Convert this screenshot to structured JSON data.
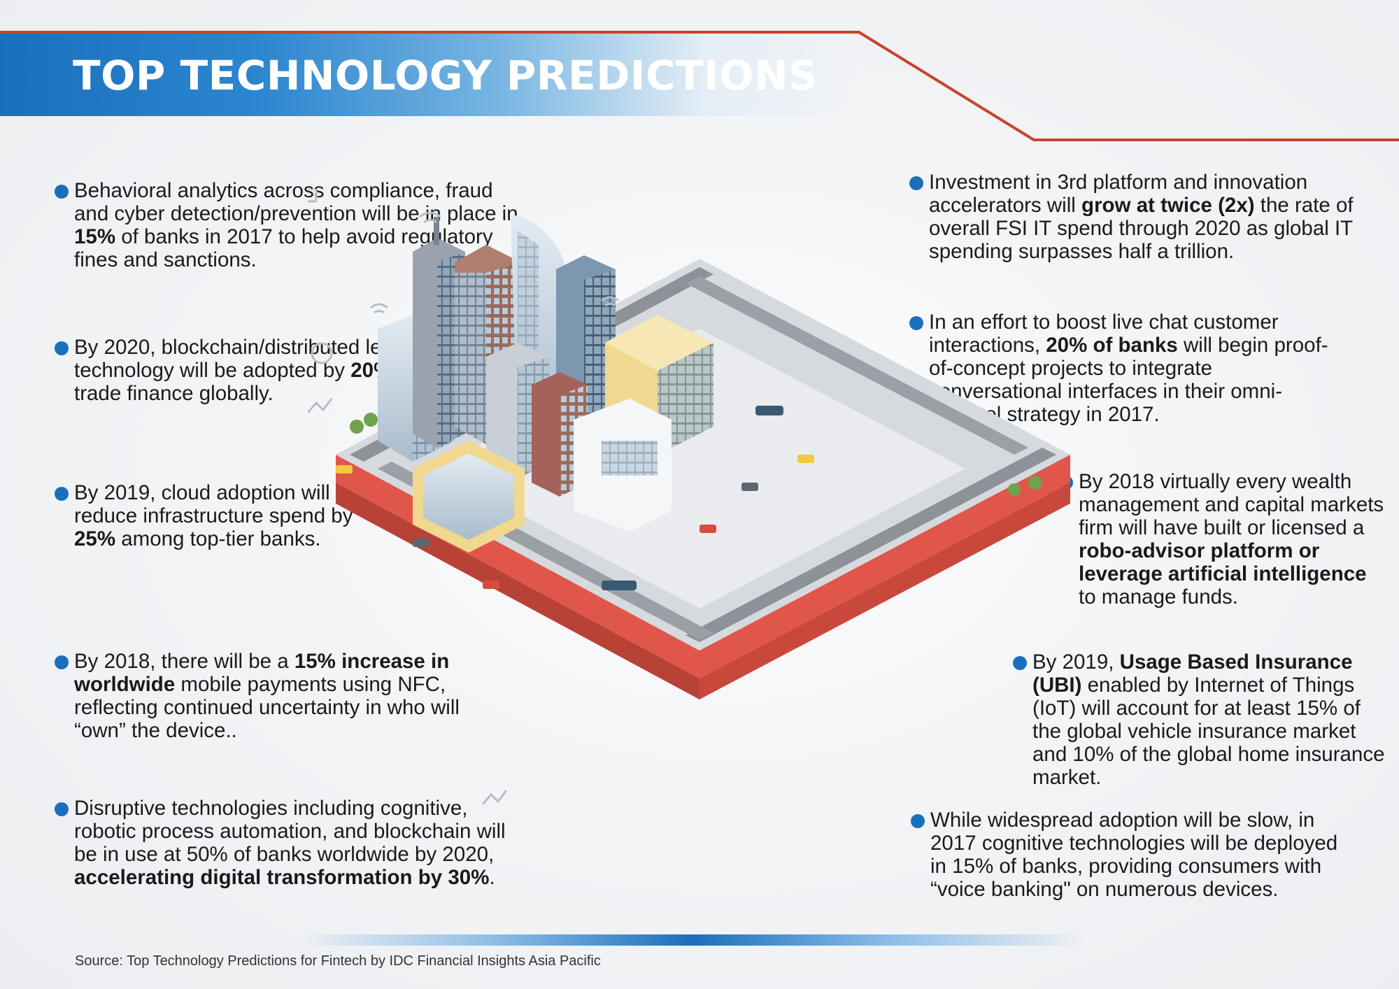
{
  "title": "TOP TECHNOLOGY PREDICTIONS",
  "predictions_left": [
    {
      "pre": "Behavioral analytics across compliance, fraud and cyber detection/prevention will be in place in ",
      "bold": "15%",
      "post": " of banks in 2017 to help avoid regulatory fines and sanctions."
    },
    {
      "pre": "By 2020, blockchain/distributed ledger technology will be adopted by ",
      "bold": "20%",
      "post": " of trade finance globally."
    },
    {
      "pre": "By 2019, cloud adoption will reduce infrastructure spend by ",
      "bold": "25%",
      "post": " among top-tier banks."
    },
    {
      "pre": "By 2018, there will be a ",
      "bold": "15% increase in worldwide",
      "post": " mobile payments using NFC, reflecting continued uncertainty in who will “own” the device.."
    },
    {
      "pre": "Disruptive technologies including cognitive, robotic process automation, and blockchain will be in use at 50% of banks worldwide by 2020, ",
      "bold": "accelerating digital transformation by 30%",
      "post": "."
    }
  ],
  "predictions_right": [
    {
      "pre": "Investment in 3rd platform and innovation accelerators will ",
      "bold": "grow at twice (2x)",
      "post": " the rate of overall FSI IT spend through 2020 as global IT spending surpasses half a trillion."
    },
    {
      "pre": "In an effort to boost live chat customer interactions, ",
      "bold": "20% of banks",
      "post": " will begin proof-of-concept projects to integrate conversational interfaces in their omni-channel strategy in 2017."
    },
    {
      "pre": "By 2018 virtually every wealth management and capital markets firm will have built or licensed a ",
      "bold": "robo-advisor platform or leverage artificial intelligence",
      "post": " to manage funds."
    },
    {
      "pre": "By 2019, ",
      "bold": "Usage Based Insurance (UBI)",
      "post": " enabled by Internet of Things (IoT) will account for at least 15% of the global vehicle insurance market and 10% of the global home insurance market."
    },
    {
      "pre": "While widespread adoption will be slow, in 2017 cognitive technologies will be deployed in 15% of banks, providing consumers with “voice banking\" on numerous devices.",
      "bold": "",
      "post": ""
    }
  ],
  "source": "Source: Top Technology Predictions for Fintech by IDC Financial Insights Asia Pacific",
  "colors": {
    "accent_blue": "#1a6fbd",
    "accent_red": "#c8432b",
    "base_red": "#e1564b"
  }
}
